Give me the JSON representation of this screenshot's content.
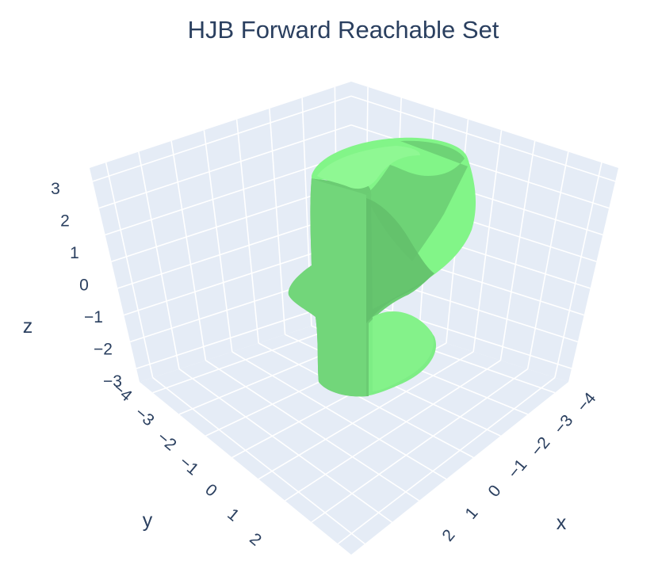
{
  "chart_data": {
    "type": "surface3d",
    "title": "HJB Forward Reachable Set",
    "xlabel": "x",
    "ylabel": "y",
    "zlabel": "z",
    "x_ticks": [
      "−4",
      "−3",
      "−2",
      "−1",
      "0",
      "1",
      "2"
    ],
    "y_ticks": [
      "−4",
      "−3",
      "−2",
      "−1",
      "0",
      "1",
      "2"
    ],
    "z_ticks": [
      "−3",
      "−2",
      "−1",
      "0",
      "1",
      "2",
      "3"
    ],
    "xlim": [
      -4.5,
      2.5
    ],
    "ylim": [
      -4.5,
      2.5
    ],
    "zlim": [
      -3.5,
      3.5
    ],
    "surface_color": "#7ded85",
    "surface_shade_color": "#6bcc73",
    "pane_color": "#e5ecf6",
    "grid_color": "#ffffff",
    "text_color": "#2a3f5f"
  }
}
